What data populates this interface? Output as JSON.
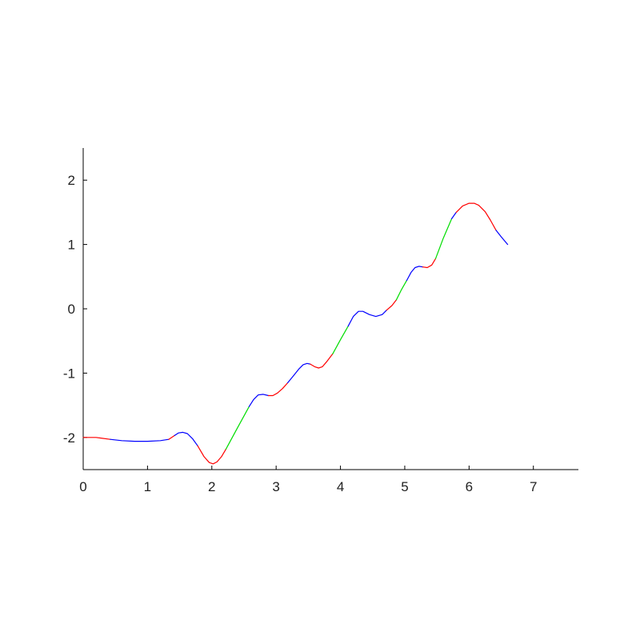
{
  "chart_data": {
    "type": "line",
    "title": "",
    "xlabel": "",
    "ylabel": "",
    "xlim": [
      0,
      7.7
    ],
    "ylim": [
      -2.5,
      2.5
    ],
    "xticks": [
      "0",
      "1",
      "2",
      "3",
      "4",
      "5",
      "6",
      "7"
    ],
    "yticks": [
      "-2",
      "-1",
      "0",
      "1",
      "2"
    ],
    "grid": false,
    "legend": "none",
    "colors": {
      "red": "#ff0000",
      "blue": "#0000ff",
      "green": "#00dd00",
      "axis": "#000000"
    },
    "series": [
      {
        "color": "red",
        "x": [
          0,
          0.2,
          0.42
        ],
        "y": [
          -2.0,
          -2.0,
          -2.03
        ]
      },
      {
        "color": "blue",
        "x": [
          0.42,
          0.6,
          0.8,
          1.0,
          1.2,
          1.33
        ],
        "y": [
          -2.03,
          -2.05,
          -2.06,
          -2.06,
          -2.05,
          -2.03
        ]
      },
      {
        "color": "red",
        "x": [
          1.33,
          1.42
        ],
        "y": [
          -2.03,
          -1.97
        ]
      },
      {
        "color": "blue",
        "x": [
          1.42,
          1.48,
          1.55,
          1.62,
          1.7,
          1.78
        ],
        "y": [
          -1.97,
          -1.93,
          -1.92,
          -1.94,
          -2.02,
          -2.13
        ]
      },
      {
        "color": "red",
        "x": [
          1.78,
          1.88,
          1.96,
          2.02,
          2.08,
          2.15,
          2.22
        ],
        "y": [
          -2.13,
          -2.3,
          -2.39,
          -2.41,
          -2.38,
          -2.3,
          -2.18
        ]
      },
      {
        "color": "green",
        "x": [
          2.22,
          2.4,
          2.58
        ],
        "y": [
          -2.18,
          -1.85,
          -1.52
        ]
      },
      {
        "color": "blue",
        "x": [
          2.58,
          2.65,
          2.72,
          2.8,
          2.88
        ],
        "y": [
          -1.52,
          -1.41,
          -1.34,
          -1.33,
          -1.35
        ]
      },
      {
        "color": "red",
        "x": [
          2.88,
          2.95,
          3.02,
          3.1,
          3.18
        ],
        "y": [
          -1.35,
          -1.35,
          -1.31,
          -1.24,
          -1.15
        ]
      },
      {
        "color": "blue",
        "x": [
          3.18,
          3.27,
          3.35,
          3.42,
          3.48,
          3.53
        ],
        "y": [
          -1.15,
          -1.04,
          -0.94,
          -0.87,
          -0.85,
          -0.86
        ]
      },
      {
        "color": "red",
        "x": [
          3.53,
          3.6,
          3.66,
          3.72,
          3.78,
          3.88
        ],
        "y": [
          -0.86,
          -0.9,
          -0.92,
          -0.9,
          -0.83,
          -0.7
        ]
      },
      {
        "color": "green",
        "x": [
          3.88,
          4.0,
          4.12
        ],
        "y": [
          -0.7,
          -0.48,
          -0.27
        ]
      },
      {
        "color": "blue",
        "x": [
          4.12,
          4.2,
          4.28,
          4.35,
          4.45,
          4.55,
          4.65,
          4.72
        ],
        "y": [
          -0.27,
          -0.12,
          -0.04,
          -0.04,
          -0.09,
          -0.12,
          -0.09,
          -0.02
        ]
      },
      {
        "color": "red",
        "x": [
          4.72,
          4.8,
          4.87
        ],
        "y": [
          -0.02,
          0.05,
          0.14
        ]
      },
      {
        "color": "green",
        "x": [
          4.87,
          4.95,
          5.03
        ],
        "y": [
          0.14,
          0.3,
          0.44
        ]
      },
      {
        "color": "blue",
        "x": [
          5.03,
          5.1,
          5.16,
          5.22,
          5.28
        ],
        "y": [
          0.44,
          0.57,
          0.64,
          0.66,
          0.65
        ]
      },
      {
        "color": "red",
        "x": [
          5.28,
          5.35,
          5.42,
          5.48
        ],
        "y": [
          0.65,
          0.64,
          0.68,
          0.78
        ]
      },
      {
        "color": "green",
        "x": [
          5.48,
          5.6,
          5.73
        ],
        "y": [
          0.78,
          1.1,
          1.4
        ]
      },
      {
        "color": "blue",
        "x": [
          5.73,
          5.8
        ],
        "y": [
          1.4,
          1.5
        ]
      },
      {
        "color": "red",
        "x": [
          5.8,
          5.9,
          6.0,
          6.08,
          6.15,
          6.25,
          6.33,
          6.42
        ],
        "y": [
          1.5,
          1.6,
          1.64,
          1.64,
          1.61,
          1.51,
          1.38,
          1.22
        ]
      },
      {
        "color": "blue",
        "x": [
          6.42,
          6.5,
          6.6
        ],
        "y": [
          1.22,
          1.12,
          1.0
        ]
      }
    ]
  }
}
